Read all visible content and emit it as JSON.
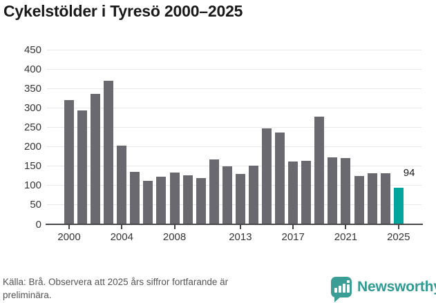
{
  "title": "Cykelstölder i Tyresö 2000–2025",
  "chart_data": {
    "type": "bar",
    "title": "Cykelstölder i Tyresö 2000–2025",
    "categories": [
      "2000",
      "2001",
      "2002",
      "2003",
      "2004",
      "2005",
      "2006",
      "2007",
      "2008",
      "2009",
      "2010",
      "2011",
      "2012",
      "2013",
      "2014",
      "2015",
      "2016",
      "2017",
      "2018",
      "2019",
      "2020",
      "2021",
      "2022",
      "2023",
      "2024",
      "2025"
    ],
    "values": [
      321,
      293,
      337,
      370,
      203,
      135,
      112,
      122,
      134,
      127,
      119,
      168,
      149,
      129,
      151,
      247,
      236,
      162,
      163,
      278,
      172,
      170,
      125,
      131,
      131,
      94
    ],
    "xlabel": "",
    "ylabel": "",
    "ylim": [
      0,
      450
    ],
    "y_ticks": [
      0,
      50,
      100,
      150,
      200,
      250,
      300,
      350,
      400,
      450
    ],
    "x_labeled_tick_indices": [
      0,
      4,
      8,
      13,
      17,
      21,
      25
    ],
    "x_labeled_tick_labels": [
      "2000",
      "2004",
      "2008",
      "2013",
      "2017",
      "2021",
      "2025"
    ],
    "grid": true,
    "legend": "none",
    "bar_color": "#6a6970",
    "highlight_index": 25,
    "highlight_color": "#00a69b",
    "highlight_value_label": "94"
  },
  "footer": {
    "source_note": "Källa: Brå. Observera att 2025 års siffror fortfarande är preliminära."
  },
  "branding": {
    "logo_text": "Newsworthy",
    "logo_color": "#2f9b93",
    "logo_icon": "speech-bubble-bar-chart-icon"
  }
}
